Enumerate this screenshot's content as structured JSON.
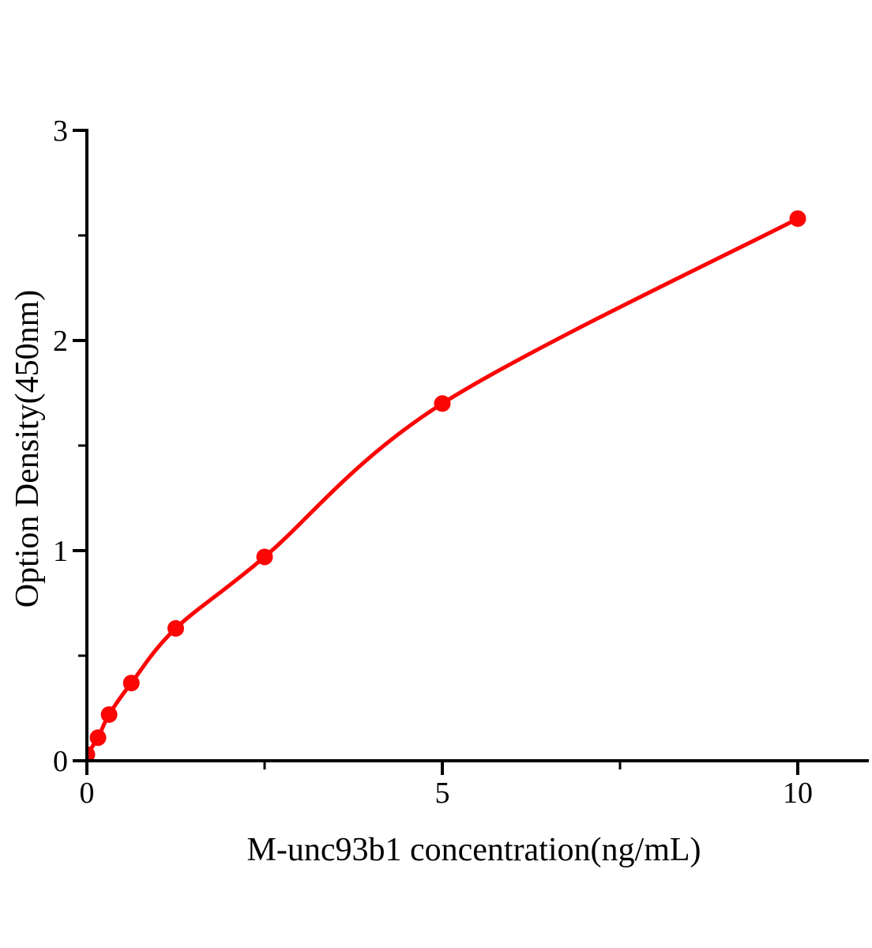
{
  "figure": {
    "background": "#ffffff"
  },
  "chart_data": {
    "type": "scatter",
    "subtype": "standard-curve-with-smooth-fit",
    "title": "",
    "xlabel": "M-unc93b1 concentration(ng/mL)",
    "ylabel": "Option Density(450nm)",
    "x": [
      0,
      0.156,
      0.3125,
      0.625,
      1.25,
      2.5,
      5,
      10
    ],
    "y": [
      0.03,
      0.11,
      0.22,
      0.37,
      0.63,
      0.97,
      1.7,
      2.58
    ],
    "xlim": [
      0,
      11
    ],
    "ylim": [
      0,
      3
    ],
    "x_major_ticks": [
      {
        "value": 0,
        "label": "0"
      },
      {
        "value": 5,
        "label": "5"
      },
      {
        "value": 10,
        "label": "10"
      }
    ],
    "x_minor_ticks": [
      2.5,
      7.5
    ],
    "y_major_ticks": [
      {
        "value": 0,
        "label": "0"
      },
      {
        "value": 1,
        "label": "1"
      },
      {
        "value": 2,
        "label": "2"
      },
      {
        "value": 3,
        "label": "3"
      }
    ],
    "y_minor_ticks": [
      0.5,
      1.5,
      2.5
    ],
    "grid": false,
    "legend": false,
    "colors": {
      "series": "#fb0505",
      "axis": "#000000",
      "text": "#000000"
    }
  }
}
